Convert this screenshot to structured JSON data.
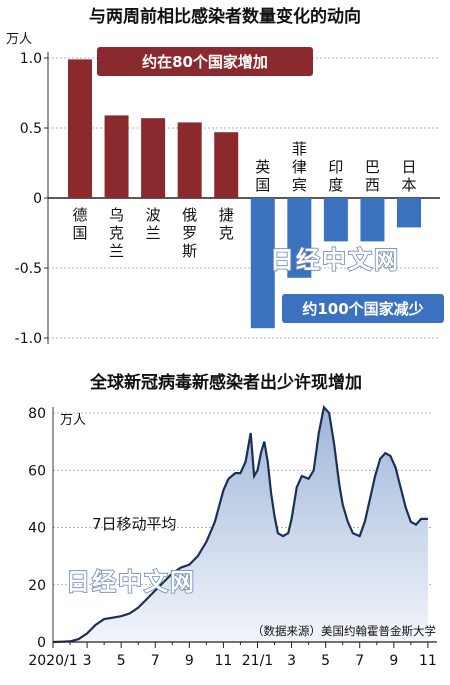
{
  "chart_data": [
    {
      "type": "bar",
      "title": "与两周前相比感染者数量变化的动向",
      "y_unit": "万人",
      "ylim": [
        -1.0,
        1.0
      ],
      "y_ticks": [
        "1.0",
        "0.5",
        "0",
        "-0.5",
        "-1.0"
      ],
      "y_tick_values": [
        1.0,
        0.5,
        0,
        -0.5,
        -1.0
      ],
      "categories": [
        "德国",
        "乌克兰",
        "波兰",
        "俄罗斯",
        "捷克",
        "英国",
        "菲律宾",
        "印度",
        "巴西",
        "日本"
      ],
      "values": [
        0.99,
        0.59,
        0.57,
        0.54,
        0.47,
        -0.93,
        -0.57,
        -0.31,
        -0.31,
        -0.21
      ],
      "callouts": {
        "increase": "约在80个国家增加",
        "decrease": "约100个国家减少"
      },
      "colors": {
        "increase": "#8b2a2e",
        "decrease": "#3a72bf"
      },
      "watermark": "日经中文网"
    },
    {
      "type": "area",
      "title": "全球新冠病毒新感染者出少许现增加",
      "y_unit": "万人",
      "ylim": [
        0,
        80
      ],
      "y_ticks": [
        "80",
        "60",
        "40",
        "20",
        "0"
      ],
      "y_tick_values": [
        80,
        60,
        40,
        20,
        0
      ],
      "x_ticks": [
        "2020/1",
        "3",
        "5",
        "7",
        "9",
        "11",
        "21/1",
        "3",
        "5",
        "7",
        "9",
        "11"
      ],
      "x_months": [
        0,
        2,
        4,
        6,
        8,
        10,
        12,
        14,
        16,
        18,
        20,
        22
      ],
      "xlim": [
        0,
        22.3
      ],
      "series_label": "7日移动平均",
      "series": [
        {
          "x": [
            0,
            0.5,
            1,
            1.5,
            2,
            2.5,
            3,
            3.5,
            4,
            4.5,
            5,
            5.5,
            6,
            6.5,
            7,
            7.5,
            8,
            8.5,
            9,
            9.5,
            10,
            10.3,
            10.7,
            11,
            11.3,
            11.6,
            11.8,
            12,
            12.2,
            12.4,
            12.6,
            12.8,
            13,
            13.2,
            13.5,
            13.8,
            14,
            14.3,
            14.6,
            15,
            15.3,
            15.6,
            15.9,
            16.2,
            16.5,
            16.8,
            17,
            17.3,
            17.6,
            18,
            18.3,
            18.6,
            18.9,
            19.2,
            19.5,
            19.8,
            20.1,
            20.4,
            20.7,
            21,
            21.3,
            21.6,
            22
          ],
          "y": [
            0,
            0.1,
            0.2,
            1,
            3,
            6,
            8,
            8.5,
            9,
            10,
            12,
            15,
            18,
            21,
            24,
            26,
            27,
            30,
            35,
            42,
            53,
            57,
            59,
            59,
            63,
            73,
            58,
            60,
            66,
            70,
            63,
            52,
            44,
            38,
            37,
            38,
            43,
            54,
            58,
            57,
            60,
            73,
            82,
            80,
            69,
            55,
            48,
            42,
            38,
            37,
            42,
            50,
            58,
            64,
            66,
            65,
            61,
            54,
            47,
            42,
            41,
            43,
            43
          ]
        }
      ],
      "colors": {
        "line": "#1c2f5a",
        "fill_top": "#9eb5d8",
        "fill_bottom": "#f2f5fb"
      },
      "source": "（数据来源）美国约翰霍普金斯大学",
      "watermark": "日经中文网"
    }
  ]
}
